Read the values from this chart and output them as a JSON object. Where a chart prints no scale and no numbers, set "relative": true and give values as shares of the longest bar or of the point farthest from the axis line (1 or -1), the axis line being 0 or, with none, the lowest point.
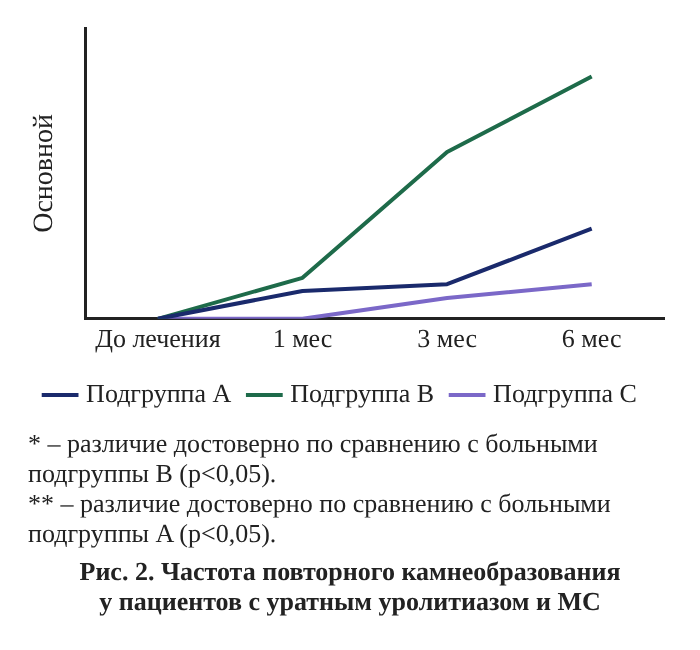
{
  "chart_data": {
    "type": "line",
    "title": "Рис. 2. Частота повторного камнеобразования\nу пациентов с уратным уролитиазом и МС",
    "ylabel": "Основной",
    "categories": [
      "До лечения",
      "1 мес",
      "3 мес",
      "6 мес"
    ],
    "relative": true,
    "legend": "bottom",
    "marker": "none",
    "grid": false,
    "series": [
      {
        "name": "Подгруппа A",
        "color": "#1a2a6c",
        "values": [
          0,
          0.115,
          0.143,
          0.372
        ]
      },
      {
        "name": "Подгруппа B",
        "color": "#1e6b4a",
        "values": [
          0,
          0.169,
          0.688,
          1
        ]
      },
      {
        "name": "Подгруппа C",
        "color": "#7b68c8",
        "values": [
          0,
          0,
          0.086,
          0.143
        ]
      }
    ],
    "annotations": [
      "* – различие достоверно по сравнению с больными подгруппы B (p<0,05).",
      "** – различие достоверно по сравнению с больными подгруппы A (p<0,05)."
    ]
  }
}
